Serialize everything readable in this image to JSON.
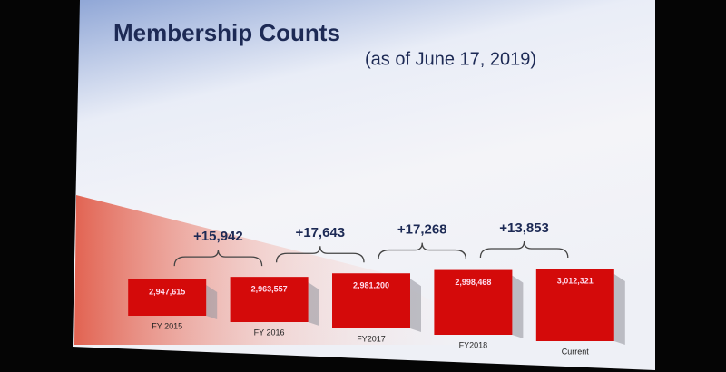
{
  "chart_data": {
    "type": "bar",
    "title": "Membership Counts",
    "subtitle": "(as of June 17, 2019)",
    "categories": [
      "FY 2015",
      "FY 2016",
      "FY2017",
      "FY2018",
      "Current"
    ],
    "values": [
      2947615,
      2963557,
      2981200,
      2998468,
      3012321
    ],
    "value_labels": [
      "2,947,615",
      "2,963,557",
      "2,981,200",
      "2,998,468",
      "3,012,321"
    ],
    "annotations": [
      "+15,942",
      "+17,643",
      "+17,268",
      "+13,853"
    ],
    "color": "#d40a0a"
  }
}
